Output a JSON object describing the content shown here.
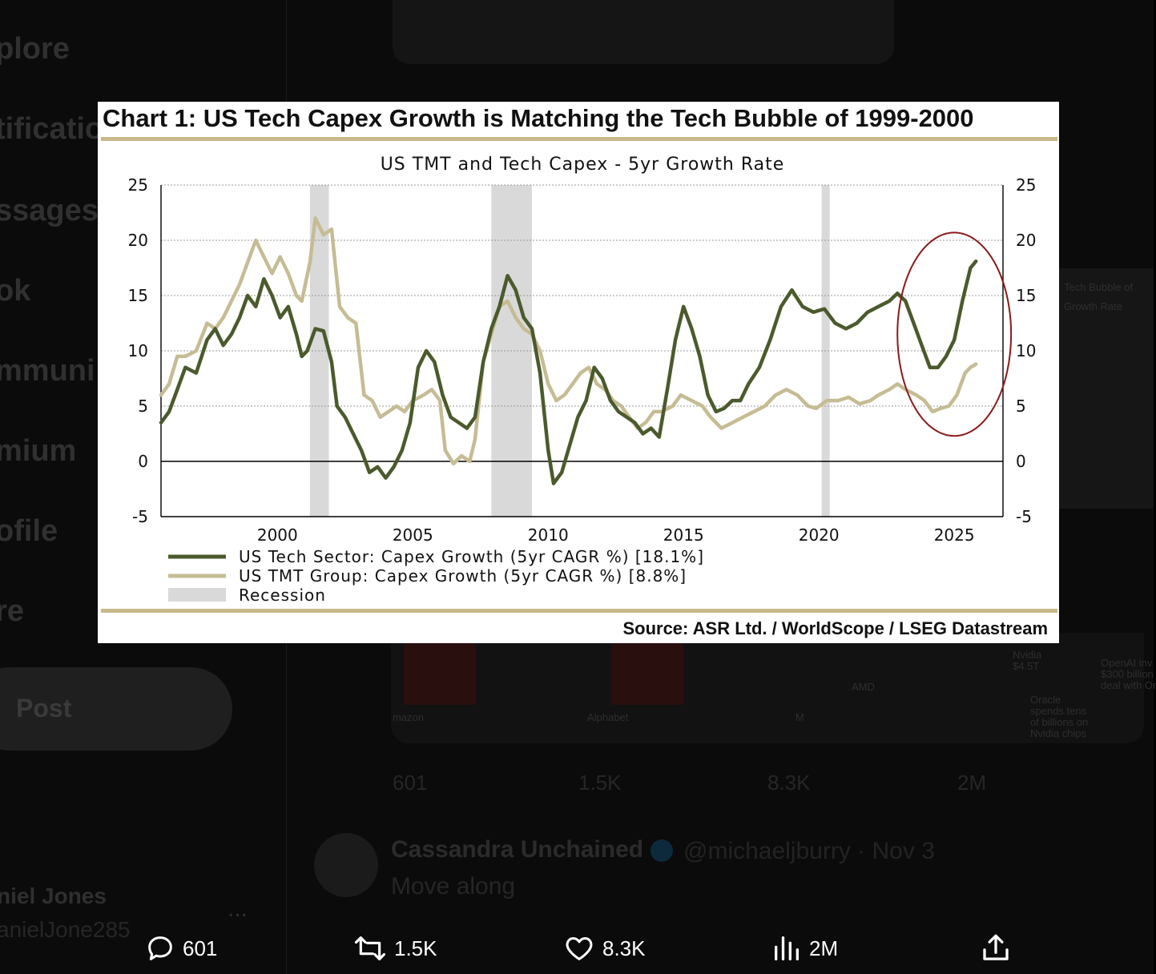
{
  "background": {
    "nav_items": [
      "plore",
      "tificatio",
      "ssages",
      "ok",
      "mmuni",
      "mium",
      "ofile",
      "re"
    ],
    "post_button_label": "Post",
    "account_name": "niel Jones",
    "account_handle": "anielJone285",
    "more_label": "...",
    "media_labels": [
      "mazon",
      "Alphabet",
      "M"
    ],
    "panel_labels": [
      "Tech Bubble of",
      "Growth Rate",
      "Nvidia",
      "$4.5T",
      "OpenAI inv",
      "$300 billion",
      "deal with Or",
      "AMD",
      "Oracle",
      "spends tens",
      "of billions on",
      "Nvidia chips"
    ],
    "actions": {
      "replies": "601",
      "reposts": "1.5K",
      "likes": "8.3K",
      "views": "2M"
    },
    "reply_tweet": {
      "user": "Cassandra Unchained",
      "handle": "@michaeljburry · Nov 3",
      "text": "Move along"
    }
  },
  "chart_card": {
    "heading": "Chart 1: US Tech Capex Growth is Matching the Tech Bubble of 1999-2000",
    "source": "Source: ASR Ltd. / WorldScope / LSEG Datastream"
  },
  "chart_data": {
    "type": "line",
    "title": "US TMT and Tech Capex - 5yr Growth Rate",
    "xlabel": "",
    "ylabel": "",
    "xlim": [
      1995.7,
      2026.8
    ],
    "ylim": [
      -5,
      25
    ],
    "y_ticks": [
      -5,
      0,
      5,
      10,
      15,
      20,
      25
    ],
    "x_ticks": [
      2000,
      2005,
      2010,
      2015,
      2020,
      2025
    ],
    "grid": true,
    "legend_position": "bottom-left",
    "recessions": [
      [
        2001.2,
        2001.9
      ],
      [
        2007.9,
        2009.4
      ],
      [
        2020.1,
        2020.4
      ]
    ],
    "highlight_ellipse": {
      "center_x": 2025.0,
      "center_y": 11.5,
      "rx_years": 2.1,
      "ry_units": 9.2,
      "color": "#8a1a1a"
    },
    "series": [
      {
        "name": "US Tech Sector: Capex Growth (5yr CAGR %) [18.1%]",
        "color": "#4b5a2c",
        "points": [
          [
            1995.7,
            3.5
          ],
          [
            1996.0,
            4.5
          ],
          [
            1996.3,
            6.5
          ],
          [
            1996.6,
            8.5
          ],
          [
            1997.0,
            8.0
          ],
          [
            1997.4,
            11.0
          ],
          [
            1997.7,
            12.0
          ],
          [
            1998.0,
            10.5
          ],
          [
            1998.3,
            11.5
          ],
          [
            1998.6,
            13.0
          ],
          [
            1998.9,
            15.0
          ],
          [
            1999.2,
            14.0
          ],
          [
            1999.5,
            16.5
          ],
          [
            1999.8,
            15.0
          ],
          [
            2000.1,
            13.0
          ],
          [
            2000.4,
            14.0
          ],
          [
            2000.7,
            11.5
          ],
          [
            2000.9,
            9.5
          ],
          [
            2001.1,
            10.0
          ],
          [
            2001.4,
            12.0
          ],
          [
            2001.7,
            11.8
          ],
          [
            2002.0,
            9.0
          ],
          [
            2002.2,
            5.0
          ],
          [
            2002.5,
            4.0
          ],
          [
            2002.8,
            2.5
          ],
          [
            2003.1,
            1.0
          ],
          [
            2003.4,
            -1.0
          ],
          [
            2003.7,
            -0.5
          ],
          [
            2004.0,
            -1.5
          ],
          [
            2004.3,
            -0.5
          ],
          [
            2004.6,
            1.0
          ],
          [
            2004.9,
            3.5
          ],
          [
            2005.2,
            8.5
          ],
          [
            2005.5,
            10.0
          ],
          [
            2005.8,
            9.0
          ],
          [
            2006.1,
            6.0
          ],
          [
            2006.4,
            4.0
          ],
          [
            2006.7,
            3.5
          ],
          [
            2007.0,
            3.0
          ],
          [
            2007.3,
            4.0
          ],
          [
            2007.6,
            9.0
          ],
          [
            2007.9,
            12.0
          ],
          [
            2008.2,
            14.0
          ],
          [
            2008.5,
            16.8
          ],
          [
            2008.8,
            15.5
          ],
          [
            2009.1,
            13.0
          ],
          [
            2009.4,
            12.0
          ],
          [
            2009.7,
            8.0
          ],
          [
            2010.0,
            1.0
          ],
          [
            2010.2,
            -2.0
          ],
          [
            2010.5,
            -1.0
          ],
          [
            2010.8,
            1.5
          ],
          [
            2011.1,
            4.0
          ],
          [
            2011.4,
            5.5
          ],
          [
            2011.7,
            8.5
          ],
          [
            2012.0,
            7.5
          ],
          [
            2012.3,
            5.5
          ],
          [
            2012.6,
            4.5
          ],
          [
            2012.9,
            4.0
          ],
          [
            2013.2,
            3.5
          ],
          [
            2013.5,
            2.5
          ],
          [
            2013.8,
            3.0
          ],
          [
            2014.1,
            2.2
          ],
          [
            2014.4,
            6.5
          ],
          [
            2014.7,
            11.0
          ],
          [
            2015.0,
            14.0
          ],
          [
            2015.3,
            12.0
          ],
          [
            2015.6,
            9.5
          ],
          [
            2015.9,
            6.0
          ],
          [
            2016.2,
            4.5
          ],
          [
            2016.5,
            4.8
          ],
          [
            2016.8,
            5.5
          ],
          [
            2017.1,
            5.5
          ],
          [
            2017.4,
            7.0
          ],
          [
            2017.8,
            8.5
          ],
          [
            2018.2,
            11.0
          ],
          [
            2018.6,
            14.0
          ],
          [
            2019.0,
            15.5
          ],
          [
            2019.4,
            14.0
          ],
          [
            2019.8,
            13.5
          ],
          [
            2020.2,
            13.8
          ],
          [
            2020.6,
            12.5
          ],
          [
            2021.0,
            12.0
          ],
          [
            2021.4,
            12.5
          ],
          [
            2021.8,
            13.5
          ],
          [
            2022.2,
            14.0
          ],
          [
            2022.6,
            14.5
          ],
          [
            2022.9,
            15.2
          ],
          [
            2023.2,
            14.5
          ],
          [
            2023.5,
            12.5
          ],
          [
            2023.8,
            10.5
          ],
          [
            2024.1,
            8.5
          ],
          [
            2024.4,
            8.5
          ],
          [
            2024.7,
            9.5
          ],
          [
            2025.0,
            11.0
          ],
          [
            2025.3,
            14.5
          ],
          [
            2025.6,
            17.5
          ],
          [
            2025.8,
            18.1
          ]
        ]
      },
      {
        "name": "US TMT Group: Capex Growth (5yr CAGR %) [8.8%]",
        "color": "#c6bc94",
        "points": [
          [
            1995.7,
            6.0
          ],
          [
            1996.0,
            7.0
          ],
          [
            1996.3,
            9.5
          ],
          [
            1996.6,
            9.5
          ],
          [
            1997.0,
            10.0
          ],
          [
            1997.4,
            12.5
          ],
          [
            1997.7,
            12.0
          ],
          [
            1998.0,
            13.0
          ],
          [
            1998.3,
            14.5
          ],
          [
            1998.6,
            16.0
          ],
          [
            1998.9,
            18.0
          ],
          [
            1999.2,
            20.0
          ],
          [
            1999.5,
            18.5
          ],
          [
            1999.8,
            17.0
          ],
          [
            2000.1,
            18.5
          ],
          [
            2000.4,
            17.0
          ],
          [
            2000.7,
            15.0
          ],
          [
            2000.9,
            14.5
          ],
          [
            2001.2,
            18.0
          ],
          [
            2001.4,
            22.0
          ],
          [
            2001.7,
            20.5
          ],
          [
            2002.0,
            21.0
          ],
          [
            2002.3,
            14.0
          ],
          [
            2002.6,
            13.0
          ],
          [
            2002.9,
            12.5
          ],
          [
            2003.2,
            6.0
          ],
          [
            2003.5,
            5.5
          ],
          [
            2003.8,
            4.0
          ],
          [
            2004.1,
            4.5
          ],
          [
            2004.4,
            5.0
          ],
          [
            2004.7,
            4.5
          ],
          [
            2005.0,
            5.5
          ],
          [
            2005.4,
            6.0
          ],
          [
            2005.7,
            6.5
          ],
          [
            2006.0,
            5.5
          ],
          [
            2006.2,
            1.0
          ],
          [
            2006.5,
            -0.2
          ],
          [
            2006.8,
            0.5
          ],
          [
            2007.1,
            0.0
          ],
          [
            2007.3,
            2.0
          ],
          [
            2007.6,
            9.0
          ],
          [
            2007.9,
            11.5
          ],
          [
            2008.2,
            14.0
          ],
          [
            2008.5,
            14.5
          ],
          [
            2008.8,
            13.0
          ],
          [
            2009.1,
            12.0
          ],
          [
            2009.4,
            11.5
          ],
          [
            2009.7,
            10.0
          ],
          [
            2010.0,
            7.0
          ],
          [
            2010.3,
            5.5
          ],
          [
            2010.6,
            6.0
          ],
          [
            2010.9,
            7.0
          ],
          [
            2011.2,
            8.0
          ],
          [
            2011.5,
            8.5
          ],
          [
            2011.8,
            7.0
          ],
          [
            2012.1,
            6.5
          ],
          [
            2012.4,
            5.5
          ],
          [
            2012.7,
            5.0
          ],
          [
            2013.0,
            4.0
          ],
          [
            2013.3,
            3.0
          ],
          [
            2013.6,
            3.5
          ],
          [
            2013.9,
            4.5
          ],
          [
            2014.2,
            4.5
          ],
          [
            2014.6,
            5.0
          ],
          [
            2014.9,
            6.0
          ],
          [
            2015.3,
            5.5
          ],
          [
            2015.7,
            5.0
          ],
          [
            2016.0,
            4.0
          ],
          [
            2016.4,
            3.0
          ],
          [
            2016.8,
            3.5
          ],
          [
            2017.2,
            4.0
          ],
          [
            2017.6,
            4.5
          ],
          [
            2018.0,
            5.0
          ],
          [
            2018.4,
            6.0
          ],
          [
            2018.8,
            6.5
          ],
          [
            2019.2,
            6.0
          ],
          [
            2019.6,
            5.0
          ],
          [
            2019.9,
            4.8
          ],
          [
            2020.3,
            5.5
          ],
          [
            2020.7,
            5.5
          ],
          [
            2021.1,
            5.8
          ],
          [
            2021.5,
            5.2
          ],
          [
            2021.9,
            5.5
          ],
          [
            2022.2,
            6.0
          ],
          [
            2022.6,
            6.5
          ],
          [
            2022.9,
            7.0
          ],
          [
            2023.2,
            6.5
          ],
          [
            2023.6,
            6.0
          ],
          [
            2023.9,
            5.5
          ],
          [
            2024.2,
            4.5
          ],
          [
            2024.5,
            4.8
          ],
          [
            2024.8,
            5.0
          ],
          [
            2025.1,
            6.0
          ],
          [
            2025.4,
            8.0
          ],
          [
            2025.6,
            8.5
          ],
          [
            2025.8,
            8.8
          ]
        ]
      }
    ],
    "legend": [
      {
        "label": "US Tech Sector: Capex Growth (5yr CAGR %) [18.1%]",
        "color": "#4b5a2c",
        "kind": "line"
      },
      {
        "label": "US TMT Group: Capex Growth (5yr CAGR %) [8.8%]",
        "color": "#c6bc94",
        "kind": "line"
      },
      {
        "label": "Recession",
        "color": "#d9d9d9",
        "kind": "box"
      }
    ]
  }
}
